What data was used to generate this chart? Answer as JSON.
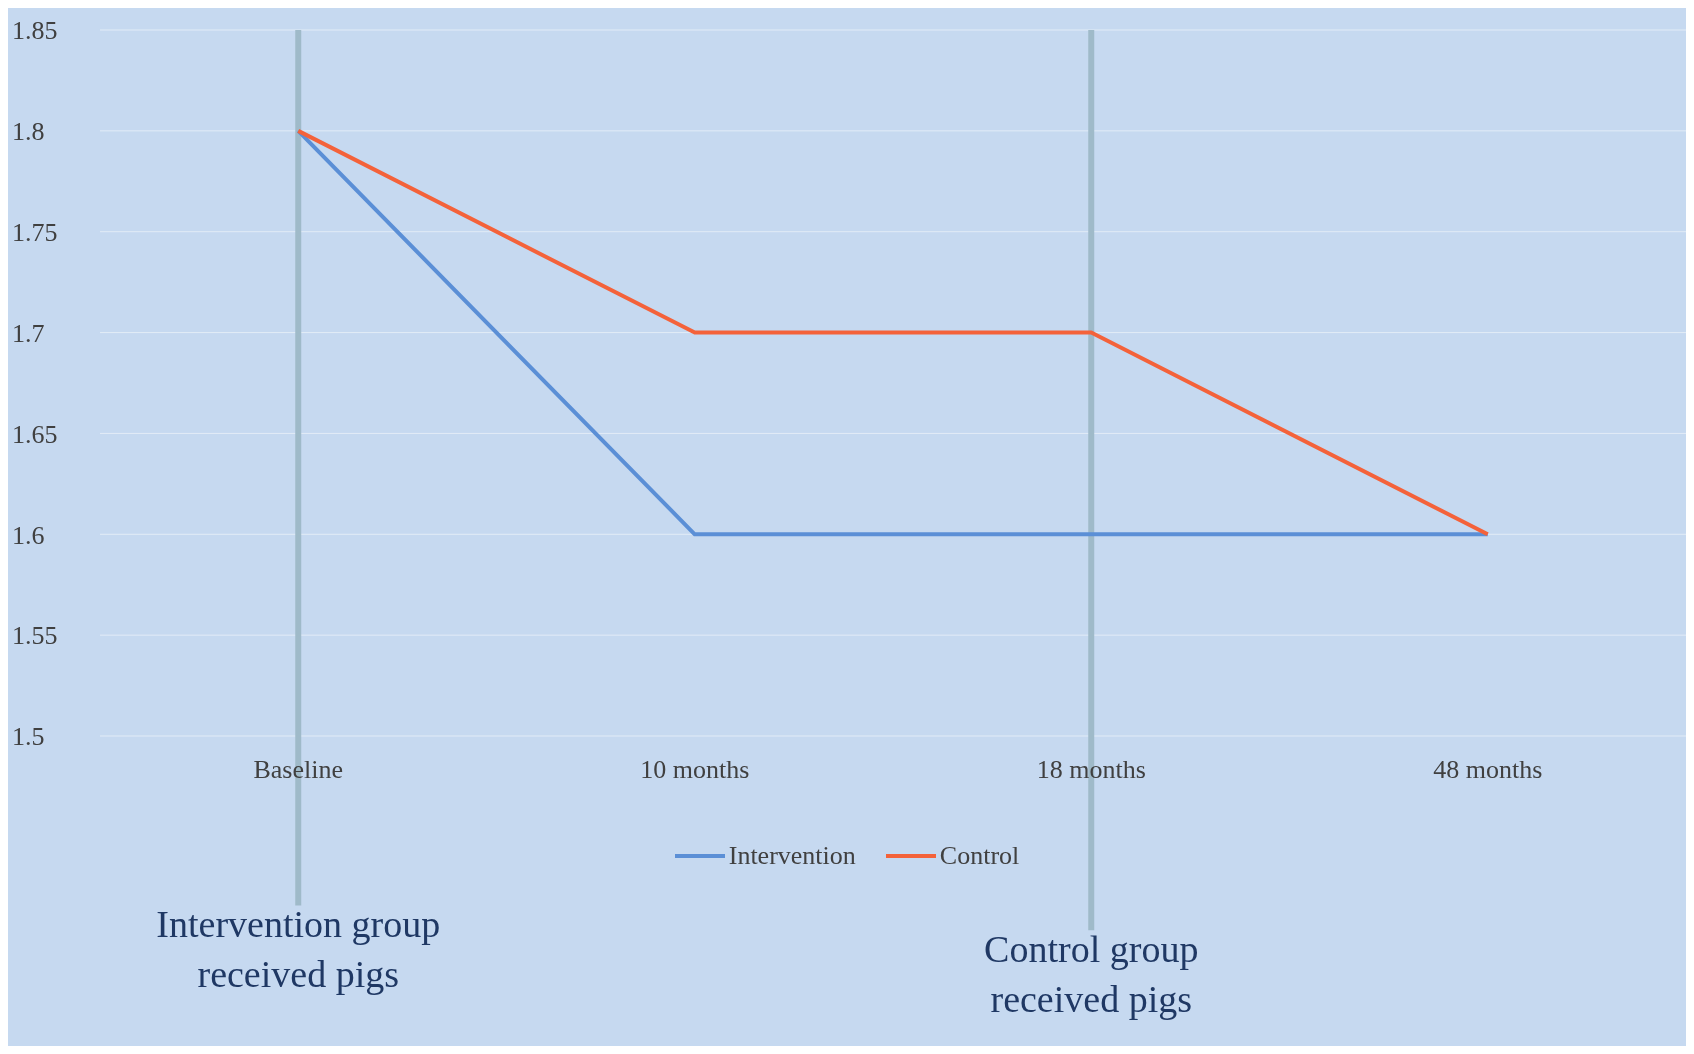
{
  "chart_data": {
    "type": "line",
    "categories": [
      "Baseline",
      "10 months",
      "18 months",
      "48 months"
    ],
    "ylim": [
      1.5,
      1.85
    ],
    "yticks": [
      1.5,
      1.55,
      1.6,
      1.65,
      1.7,
      1.75,
      1.8,
      1.85
    ],
    "grid": "y",
    "legend": "bottom",
    "marker": "none",
    "line_style": "solid",
    "series": [
      {
        "name": "Intervention",
        "color": "#5b8fd6",
        "values": [
          1.8,
          1.6,
          1.6,
          1.6
        ]
      },
      {
        "name": "Control",
        "color": "#f4623a",
        "values": [
          1.8,
          1.7,
          1.7,
          1.6
        ]
      }
    ],
    "ref_lines": [
      {
        "axis": "x",
        "value": "Baseline",
        "label": "Intervention group received pigs",
        "color": "#9fbac9"
      },
      {
        "axis": "x",
        "value": "18 months",
        "label": "Control group received pigs",
        "color": "#9fbac9"
      }
    ]
  }
}
